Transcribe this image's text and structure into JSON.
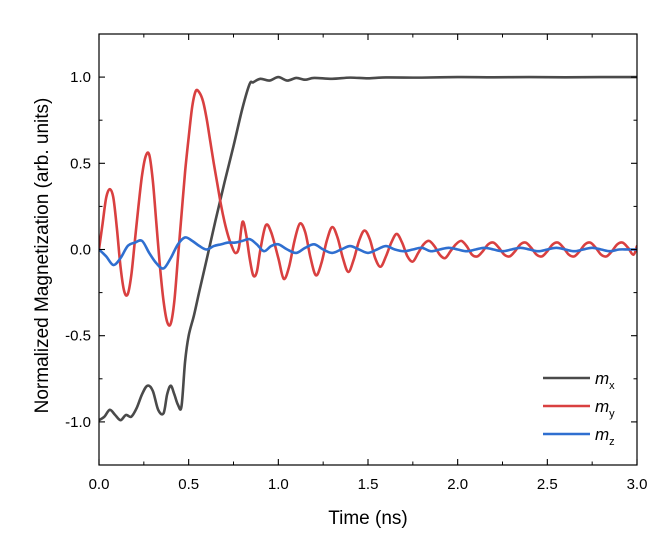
{
  "chart_data": {
    "type": "line",
    "title": "",
    "xlabel": "Time (ns)",
    "ylabel": "Normalized Magnetization (arb. units)",
    "xlim": [
      0.0,
      3.0
    ],
    "ylim": [
      -1.25,
      1.25
    ],
    "xticks": [
      "0.0",
      "0.5",
      "1.0",
      "1.5",
      "2.0",
      "2.5",
      "3.0"
    ],
    "xtick_values": [
      0.0,
      0.5,
      1.0,
      1.5,
      2.0,
      2.5,
      3.0
    ],
    "yticks": [
      "-1.0",
      "-0.5",
      "0.0",
      "0.5",
      "1.0"
    ],
    "ytick_values": [
      -1.0,
      -0.5,
      0.0,
      0.5,
      1.0
    ],
    "grid": false,
    "legend_position": "bottom-right",
    "series": [
      {
        "name": "m",
        "subscript": "x",
        "color": "#4a4a4a",
        "x": [
          0.0,
          0.03,
          0.06,
          0.09,
          0.12,
          0.15,
          0.18,
          0.21,
          0.24,
          0.27,
          0.3,
          0.33,
          0.36,
          0.38,
          0.4,
          0.42,
          0.44,
          0.46,
          0.48,
          0.5,
          0.53,
          0.56,
          0.6,
          0.65,
          0.7,
          0.75,
          0.8,
          0.84,
          0.86,
          0.9,
          0.95,
          1.0,
          1.05,
          1.1,
          1.15,
          1.2,
          1.3,
          1.4,
          1.5,
          1.6,
          1.8,
          2.0,
          2.2,
          2.4,
          2.6,
          2.8,
          3.0
        ],
        "y": [
          -0.99,
          -0.97,
          -0.93,
          -0.96,
          -0.99,
          -0.96,
          -0.97,
          -0.92,
          -0.84,
          -0.79,
          -0.82,
          -0.93,
          -0.95,
          -0.84,
          -0.79,
          -0.84,
          -0.9,
          -0.91,
          -0.65,
          -0.5,
          -0.38,
          -0.24,
          -0.06,
          0.17,
          0.39,
          0.6,
          0.82,
          0.96,
          0.97,
          0.99,
          0.98,
          1.0,
          0.98,
          0.995,
          0.985,
          0.995,
          0.99,
          0.997,
          0.993,
          0.998,
          0.997,
          1.0,
          0.999,
          1.0,
          0.999,
          1.0,
          1.0
        ]
      },
      {
        "name": "m",
        "subscript": "y",
        "color": "#d94040",
        "x": [
          0.0,
          0.02,
          0.04,
          0.06,
          0.08,
          0.1,
          0.12,
          0.14,
          0.16,
          0.18,
          0.2,
          0.22,
          0.24,
          0.26,
          0.28,
          0.3,
          0.32,
          0.34,
          0.36,
          0.38,
          0.4,
          0.42,
          0.44,
          0.46,
          0.48,
          0.5,
          0.52,
          0.54,
          0.56,
          0.58,
          0.6,
          0.62,
          0.64,
          0.66,
          0.68,
          0.7,
          0.72,
          0.74,
          0.76,
          0.78,
          0.8,
          0.82,
          0.84,
          0.86,
          0.88,
          0.9,
          0.93,
          0.96,
          1.0,
          1.03,
          1.06,
          1.09,
          1.12,
          1.15,
          1.18,
          1.21,
          1.24,
          1.27,
          1.3,
          1.33,
          1.36,
          1.39,
          1.42,
          1.45,
          1.48,
          1.51,
          1.54,
          1.57,
          1.6,
          1.63,
          1.66,
          1.69,
          1.72,
          1.75,
          1.78,
          1.81,
          1.84,
          1.87,
          1.9,
          1.93,
          1.96,
          1.99,
          2.02,
          2.05,
          2.08,
          2.11,
          2.14,
          2.17,
          2.2,
          2.23,
          2.26,
          2.29,
          2.32,
          2.35,
          2.38,
          2.41,
          2.44,
          2.47,
          2.5,
          2.53,
          2.56,
          2.59,
          2.62,
          2.65,
          2.68,
          2.71,
          2.74,
          2.77,
          2.8,
          2.83,
          2.86,
          2.89,
          2.92,
          2.95,
          2.98,
          3.0
        ],
        "y": [
          0.0,
          0.15,
          0.3,
          0.35,
          0.3,
          0.12,
          -0.1,
          -0.24,
          -0.26,
          -0.15,
          0.05,
          0.25,
          0.43,
          0.54,
          0.55,
          0.4,
          0.15,
          -0.1,
          -0.3,
          -0.42,
          -0.43,
          -0.3,
          -0.05,
          0.2,
          0.45,
          0.65,
          0.83,
          0.92,
          0.91,
          0.86,
          0.76,
          0.63,
          0.5,
          0.38,
          0.26,
          0.16,
          0.08,
          0.02,
          -0.02,
          0.01,
          0.16,
          0.09,
          -0.05,
          -0.15,
          -0.13,
          0.0,
          0.14,
          0.1,
          -0.05,
          -0.17,
          -0.1,
          0.05,
          0.15,
          0.1,
          -0.05,
          -0.15,
          -0.08,
          0.05,
          0.13,
          0.07,
          -0.05,
          -0.13,
          -0.06,
          0.05,
          0.11,
          0.06,
          -0.05,
          -0.1,
          -0.04,
          0.04,
          0.09,
          0.04,
          -0.04,
          -0.07,
          -0.02,
          0.03,
          0.05,
          0.02,
          -0.03,
          -0.05,
          -0.01,
          0.03,
          0.05,
          0.02,
          -0.03,
          -0.04,
          -0.01,
          0.03,
          0.04,
          0.01,
          -0.03,
          -0.04,
          -0.01,
          0.03,
          0.04,
          0.01,
          -0.03,
          -0.04,
          -0.01,
          0.03,
          0.04,
          0.01,
          -0.03,
          -0.04,
          -0.01,
          0.03,
          0.04,
          0.01,
          -0.03,
          -0.04,
          -0.01,
          0.03,
          0.04,
          0.01,
          -0.03,
          0.02
        ]
      },
      {
        "name": "m",
        "subscript": "z",
        "color": "#2f6fd0",
        "x": [
          0.0,
          0.04,
          0.08,
          0.12,
          0.16,
          0.2,
          0.24,
          0.28,
          0.32,
          0.36,
          0.4,
          0.44,
          0.48,
          0.52,
          0.56,
          0.6,
          0.64,
          0.68,
          0.72,
          0.76,
          0.8,
          0.84,
          0.88,
          0.92,
          0.96,
          1.0,
          1.05,
          1.1,
          1.15,
          1.2,
          1.25,
          1.3,
          1.35,
          1.4,
          1.45,
          1.5,
          1.55,
          1.6,
          1.65,
          1.7,
          1.75,
          1.8,
          1.85,
          1.9,
          1.95,
          2.0,
          2.05,
          2.1,
          2.15,
          2.2,
          2.25,
          2.3,
          2.35,
          2.4,
          2.45,
          2.5,
          2.55,
          2.6,
          2.65,
          2.7,
          2.75,
          2.8,
          2.85,
          2.9,
          2.95,
          3.0
        ],
        "y": [
          0.0,
          -0.04,
          -0.09,
          -0.05,
          0.02,
          0.04,
          0.05,
          -0.02,
          -0.08,
          -0.11,
          -0.05,
          0.03,
          0.07,
          0.05,
          0.02,
          0.0,
          0.02,
          0.03,
          0.04,
          0.04,
          0.05,
          0.06,
          0.03,
          -0.01,
          0.02,
          0.03,
          0.0,
          -0.02,
          0.01,
          0.03,
          0.0,
          -0.02,
          0.0,
          0.02,
          0.0,
          -0.02,
          0.0,
          0.02,
          0.0,
          -0.01,
          0.0,
          0.01,
          -0.01,
          0.0,
          0.01,
          0.0,
          -0.01,
          0.0,
          0.01,
          0.0,
          -0.01,
          0.0,
          0.01,
          0.0,
          -0.01,
          0.0,
          0.01,
          0.0,
          -0.01,
          0.0,
          0.01,
          0.0,
          -0.01,
          0.0,
          0.0,
          0.0
        ]
      }
    ]
  }
}
